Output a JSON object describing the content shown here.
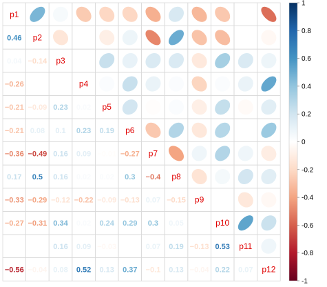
{
  "chart_data": {
    "type": "heatmap",
    "method": "correlation matrix: ellipses in upper triangle, numbers in lower triangle",
    "variables": [
      "p1",
      "p2",
      "p3",
      "p4",
      "p5",
      "p6",
      "p7",
      "p8",
      "p9",
      "p10",
      "p11",
      "p12"
    ],
    "matrix": [
      [
        1,
        0.46,
        0.04,
        -0.26,
        -0.21,
        -0.21,
        -0.36,
        0.17,
        -0.33,
        -0.27,
        0.0,
        -0.56
      ],
      [
        0.46,
        1,
        -0.14,
        0.0,
        -0.09,
        0.08,
        -0.49,
        0.5,
        -0.29,
        -0.31,
        0.0,
        -0.04
      ],
      [
        0.04,
        -0.14,
        1,
        0.0,
        0.23,
        0.1,
        0.16,
        0.16,
        -0.12,
        0.34,
        0.16,
        0.08
      ],
      [
        -0.26,
        0.0,
        0.0,
        1,
        0.02,
        0.23,
        0.09,
        0.02,
        -0.22,
        0.02,
        0.09,
        0.52
      ],
      [
        -0.21,
        -0.09,
        0.23,
        0.02,
        1,
        0.19,
        -0.01,
        0.02,
        -0.09,
        0.24,
        -0.03,
        0.13
      ],
      [
        -0.21,
        0.08,
        0.1,
        0.23,
        0.19,
        1,
        -0.27,
        0.3,
        -0.13,
        0.29,
        0.0,
        0.37
      ],
      [
        -0.36,
        -0.49,
        0.16,
        0.09,
        -0.01,
        -0.27,
        1,
        -0.4,
        0.07,
        0.3,
        0.07,
        -0.1
      ],
      [
        0.17,
        0.5,
        0.16,
        0.02,
        0.02,
        0.3,
        -0.4,
        1,
        -0.15,
        0.05,
        0.19,
        0.13
      ],
      [
        -0.33,
        -0.29,
        -0.12,
        -0.22,
        -0.09,
        -0.13,
        0.07,
        -0.15,
        1,
        0.0,
        -0.13,
        -0.04
      ],
      [
        -0.27,
        -0.31,
        0.34,
        0.02,
        0.24,
        0.29,
        0.3,
        0.05,
        0.0,
        1,
        0.53,
        0.22
      ],
      [
        0.0,
        0.0,
        0.16,
        0.09,
        -0.03,
        0.0,
        0.07,
        0.19,
        -0.13,
        0.53,
        1,
        0.07
      ],
      [
        -0.56,
        -0.04,
        0.08,
        0.52,
        0.13,
        0.37,
        -0.1,
        0.13,
        -0.04,
        0.22,
        0.07,
        1
      ]
    ],
    "colorbar": {
      "range": [
        -1,
        1
      ],
      "ticks": [
        "1",
        "0.8",
        "0.6",
        "0.4",
        "0.2",
        "0",
        "-0.2",
        "-0.4",
        "-0.6",
        "-0.8",
        "-1"
      ]
    },
    "colors": {
      "negative_strong": "#67001F",
      "neutral": "#FFFFFF",
      "positive_strong": "#053061",
      "diag_label": "#e00000",
      "grid": "#d9d9d9"
    }
  }
}
